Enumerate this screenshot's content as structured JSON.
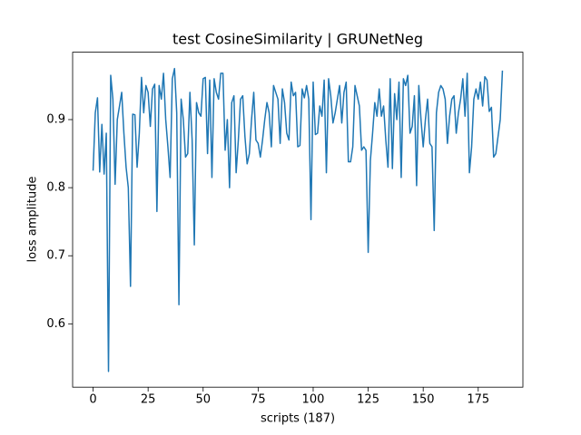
{
  "chart_data": {
    "type": "line",
    "title": "test CosineSimilarity | GRUNetNeg",
    "x_label": "scripts (187)",
    "y_label": "loss amplitude",
    "color": "#1f77b4",
    "x": [
      0,
      1,
      2,
      3,
      4,
      5,
      6,
      7,
      8,
      9,
      10,
      11,
      12,
      13,
      14,
      15,
      16,
      17,
      18,
      19,
      20,
      21,
      22,
      23,
      24,
      25,
      26,
      27,
      28,
      29,
      30,
      31,
      32,
      33,
      34,
      35,
      36,
      37,
      38,
      39,
      40,
      41,
      42,
      43,
      44,
      45,
      46,
      47,
      48,
      49,
      50,
      51,
      52,
      53,
      54,
      55,
      56,
      57,
      58,
      59,
      60,
      61,
      62,
      63,
      64,
      65,
      66,
      67,
      68,
      69,
      70,
      71,
      72,
      73,
      74,
      75,
      76,
      77,
      78,
      79,
      80,
      81,
      82,
      83,
      84,
      85,
      86,
      87,
      88,
      89,
      90,
      91,
      92,
      93,
      94,
      95,
      96,
      97,
      98,
      99,
      100,
      101,
      102,
      103,
      104,
      105,
      106,
      107,
      108,
      109,
      110,
      111,
      112,
      113,
      114,
      115,
      116,
      117,
      118,
      119,
      120,
      121,
      122,
      123,
      124,
      125,
      126,
      127,
      128,
      129,
      130,
      131,
      132,
      133,
      134,
      135,
      136,
      137,
      138,
      139,
      140,
      141,
      142,
      143,
      144,
      145,
      146,
      147,
      148,
      149,
      150,
      151,
      152,
      153,
      154,
      155,
      156,
      157,
      158,
      159,
      160,
      161,
      162,
      163,
      164,
      165,
      166,
      167,
      168,
      169,
      170,
      171,
      172,
      173,
      174,
      175,
      176,
      177,
      178,
      179,
      180,
      181,
      182,
      183,
      184,
      185,
      186
    ],
    "values": [
      0.825,
      0.91,
      0.932,
      0.823,
      0.893,
      0.82,
      0.88,
      0.53,
      0.965,
      0.93,
      0.805,
      0.9,
      0.92,
      0.94,
      0.88,
      0.83,
      0.8,
      0.655,
      0.908,
      0.907,
      0.83,
      0.88,
      0.962,
      0.91,
      0.95,
      0.94,
      0.89,
      0.945,
      0.952,
      0.765,
      0.95,
      0.93,
      0.968,
      0.9,
      0.86,
      0.815,
      0.96,
      0.975,
      0.91,
      0.628,
      0.93,
      0.9,
      0.845,
      0.85,
      0.94,
      0.87,
      0.716,
      0.925,
      0.91,
      0.905,
      0.96,
      0.962,
      0.85,
      0.958,
      0.815,
      0.96,
      0.94,
      0.93,
      0.968,
      0.968,
      0.855,
      0.9,
      0.8,
      0.925,
      0.935,
      0.822,
      0.87,
      0.93,
      0.935,
      0.875,
      0.835,
      0.85,
      0.9,
      0.94,
      0.87,
      0.865,
      0.845,
      0.87,
      0.9,
      0.925,
      0.91,
      0.86,
      0.95,
      0.94,
      0.93,
      0.865,
      0.945,
      0.925,
      0.88,
      0.87,
      0.955,
      0.935,
      0.94,
      0.86,
      0.862,
      0.945,
      0.932,
      0.95,
      0.93,
      0.753,
      0.955,
      0.878,
      0.88,
      0.92,
      0.905,
      0.958,
      0.822,
      0.96,
      0.935,
      0.895,
      0.91,
      0.93,
      0.95,
      0.895,
      0.94,
      0.955,
      0.838,
      0.838,
      0.86,
      0.95,
      0.935,
      0.92,
      0.855,
      0.86,
      0.855,
      0.705,
      0.84,
      0.88,
      0.925,
      0.905,
      0.945,
      0.905,
      0.92,
      0.87,
      0.83,
      0.96,
      0.828,
      0.938,
      0.9,
      0.955,
      0.815,
      0.96,
      0.95,
      0.965,
      0.88,
      0.89,
      0.935,
      0.803,
      0.95,
      0.9,
      0.86,
      0.9,
      0.93,
      0.865,
      0.86,
      0.737,
      0.91,
      0.94,
      0.95,
      0.945,
      0.93,
      0.865,
      0.905,
      0.93,
      0.935,
      0.88,
      0.91,
      0.93,
      0.96,
      0.905,
      0.968,
      0.822,
      0.86,
      0.93,
      0.945,
      0.93,
      0.955,
      0.92,
      0.963,
      0.958,
      0.912,
      0.918,
      0.845,
      0.85,
      0.875,
      0.9,
      0.972
    ],
    "xlim": [
      -9.3,
      195.3
    ],
    "ylim": [
      0.507,
      0.999
    ],
    "xticks": [
      0,
      25,
      50,
      75,
      100,
      125,
      150,
      175
    ],
    "yticks": [
      0.6,
      0.7,
      0.8,
      0.9
    ]
  }
}
